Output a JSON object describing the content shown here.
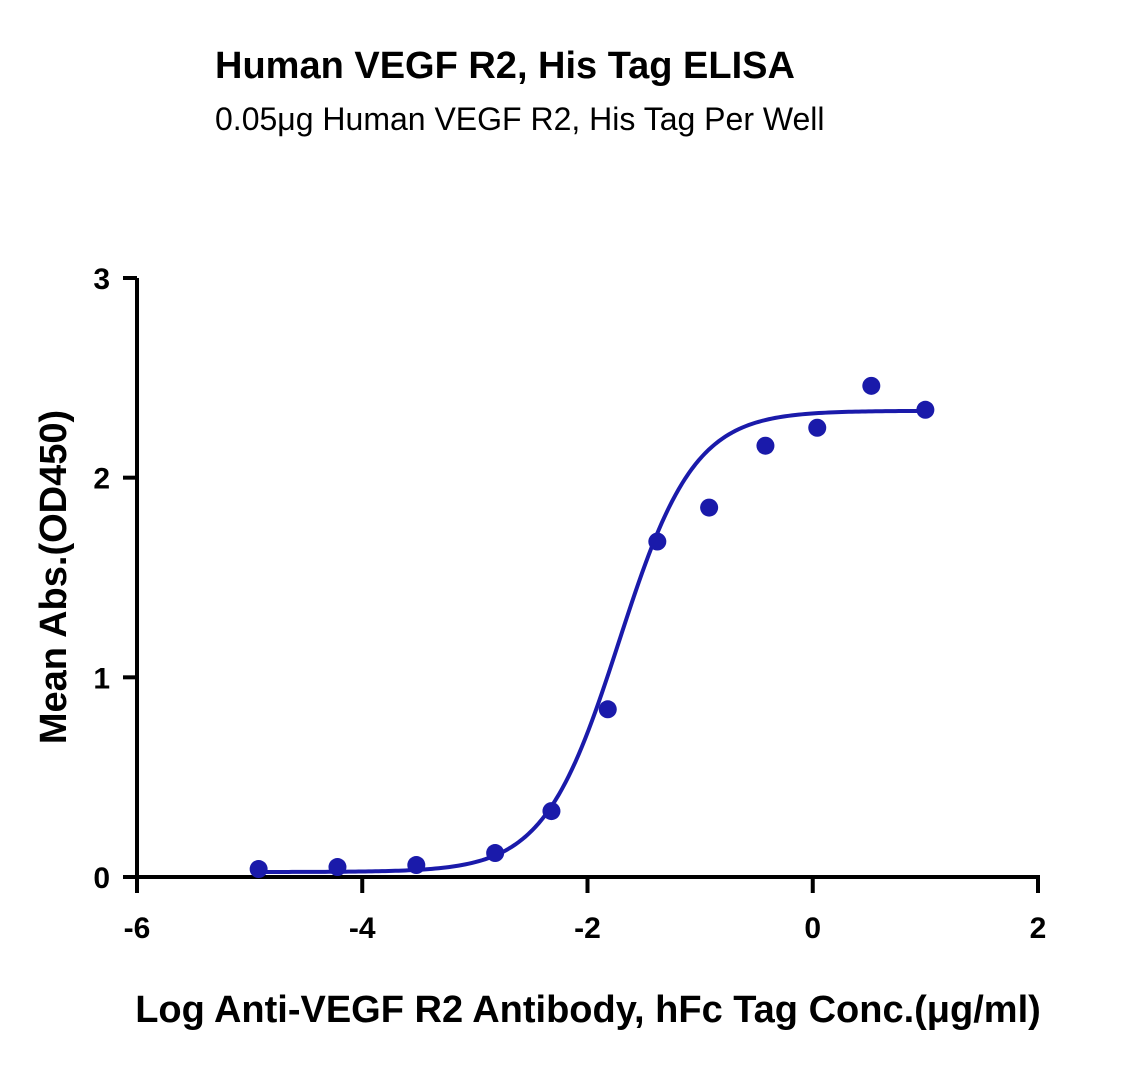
{
  "chart_data": {
    "type": "scatter",
    "title": "Human VEGF R2, His Tag ELISA",
    "subtitle": "0.05μg Human VEGF R2, His Tag Per Well",
    "xlabel": "Log Anti-VEGF R2 Antibody, hFc Tag Conc.(μg/ml)",
    "ylabel": "Mean Abs.(OD450)",
    "xlim": [
      -6,
      2
    ],
    "ylim": [
      0,
      3
    ],
    "x_ticks": [
      -6,
      -4,
      -2,
      0,
      2
    ],
    "y_ticks": [
      0,
      1,
      2,
      3
    ],
    "x_tick_labels": [
      "-6",
      "-4",
      "-2",
      "0",
      "2"
    ],
    "y_tick_labels": [
      "0",
      "1",
      "2",
      "3"
    ],
    "grid": false,
    "color": "#1a1aaa",
    "series": [
      {
        "points": [
          {
            "x": -4.92,
            "y": 0.04
          },
          {
            "x": -4.22,
            "y": 0.05
          },
          {
            "x": -3.52,
            "y": 0.06
          },
          {
            "x": -2.82,
            "y": 0.12
          },
          {
            "x": -2.32,
            "y": 0.33
          },
          {
            "x": -1.82,
            "y": 0.84
          },
          {
            "x": -1.38,
            "y": 1.68
          },
          {
            "x": -0.92,
            "y": 1.85
          },
          {
            "x": -0.42,
            "y": 2.16
          },
          {
            "x": 0.04,
            "y": 2.25
          },
          {
            "x": 0.52,
            "y": 2.46
          },
          {
            "x": 1.0,
            "y": 2.34
          }
        ],
        "fit": {
          "model": "4PL",
          "bottom": 0.025,
          "top": 2.335,
          "logEC50": -1.72,
          "hill": 1.3,
          "x_range": [
            -4.92,
            1.0
          ]
        }
      }
    ]
  }
}
